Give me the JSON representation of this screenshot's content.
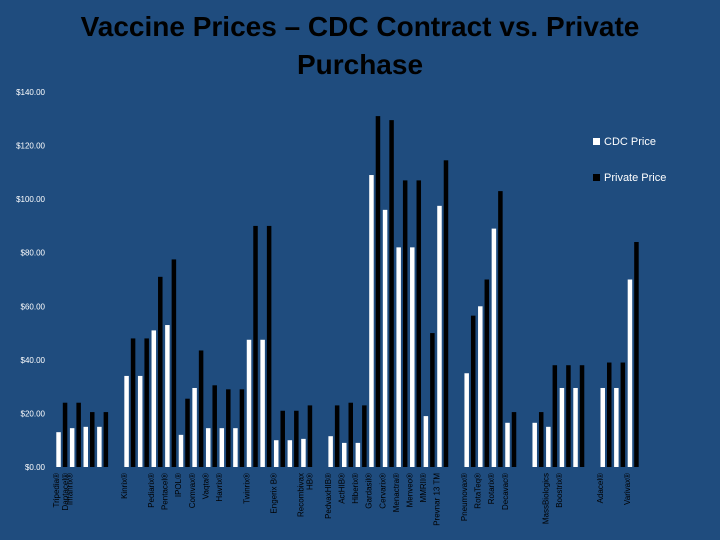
{
  "chart_data": {
    "type": "bar",
    "title": "Vaccine Prices – CDC Contract vs. Private Purchase",
    "xlabel": "",
    "ylabel": "",
    "ylim": [
      0,
      140
    ],
    "yticks": [
      "$0.00",
      "$20.00",
      "$40.00",
      "$60.00",
      "$80.00",
      "$100.00",
      "$120.00",
      "$140.00"
    ],
    "ytick_values": [
      0,
      20,
      40,
      60,
      80,
      100,
      120,
      140
    ],
    "legend": {
      "placement": "top-right",
      "entries": [
        "CDC Price",
        "Private Price"
      ]
    },
    "series": [
      {
        "name": "CDC Price",
        "color": "#ffffff",
        "values": [
          13,
          14.5,
          15,
          15,
          null,
          34,
          34,
          51,
          53,
          12,
          29.5,
          14.5,
          14.5,
          14.5,
          47.5,
          47.5,
          10,
          10,
          10.5,
          null,
          11.5,
          9,
          9,
          109,
          96,
          82,
          82,
          19,
          97.5,
          null,
          35,
          60,
          89,
          16.5,
          null,
          16.5,
          15,
          29.5,
          29.5,
          null,
          29.5,
          29.5,
          70
        ]
      },
      {
        "name": "Private Price",
        "color": "#000000",
        "values": [
          24,
          24,
          20.5,
          20.5,
          null,
          48,
          48,
          71,
          77.5,
          25.5,
          43.5,
          30.5,
          29,
          29,
          90,
          90,
          21,
          21,
          23,
          null,
          23,
          24,
          23,
          131,
          129.5,
          107,
          107,
          50,
          114.5,
          null,
          56.5,
          70,
          103,
          20.5,
          null,
          20.5,
          38,
          38,
          38,
          null,
          39,
          39,
          84
        ]
      }
    ],
    "categories": [
      {
        "line1": "Tripedia®",
        "line2": "Daptacel®"
      },
      {
        "line1": "Infanrix®",
        "line2": ""
      },
      {
        "line1": "",
        "line2": ""
      },
      {
        "line1": "",
        "line2": ""
      },
      {
        "line1": "",
        "line2": ""
      },
      {
        "line1": "Kinrix®",
        "line2": ""
      },
      {
        "line1": "",
        "line2": ""
      },
      {
        "line1": "Pediarix®",
        "line2": ""
      },
      {
        "line1": "Pentacel®",
        "line2": ""
      },
      {
        "line1": "IPOL®",
        "line2": ""
      },
      {
        "line1": "Comvax®",
        "line2": ""
      },
      {
        "line1": "Vaqta®",
        "line2": ""
      },
      {
        "line1": "Havrix®",
        "line2": ""
      },
      {
        "line1": "",
        "line2": ""
      },
      {
        "line1": "Twinrix®",
        "line2": ""
      },
      {
        "line1": "",
        "line2": ""
      },
      {
        "line1": "Engerix B®",
        "line2": ""
      },
      {
        "line1": "",
        "line2": ""
      },
      {
        "line1": "Recombivax",
        "line2": "HB®"
      },
      {
        "line1": "",
        "line2": ""
      },
      {
        "line1": "PedvaxHIB®",
        "line2": ""
      },
      {
        "line1": "ActHIB®",
        "line2": ""
      },
      {
        "line1": "Hiberix®",
        "line2": ""
      },
      {
        "line1": "Gardasil®",
        "line2": ""
      },
      {
        "line1": "Cervarix®",
        "line2": ""
      },
      {
        "line1": "Menactra®",
        "line2": ""
      },
      {
        "line1": "Menveo®",
        "line2": ""
      },
      {
        "line1": "MMRII®",
        "line2": ""
      },
      {
        "line1": "Prevnar 13 TM",
        "line2": ""
      },
      {
        "line1": "",
        "line2": ""
      },
      {
        "line1": "Pneumovax®",
        "line2": ""
      },
      {
        "line1": "RotaTeq®",
        "line2": ""
      },
      {
        "line1": "Rotarix®",
        "line2": ""
      },
      {
        "line1": "Decavac®",
        "line2": ""
      },
      {
        "line1": "",
        "line2": ""
      },
      {
        "line1": "",
        "line2": ""
      },
      {
        "line1": "MassBiologics",
        "line2": ""
      },
      {
        "line1": "Boostrix®",
        "line2": ""
      },
      {
        "line1": "",
        "line2": ""
      },
      {
        "line1": "",
        "line2": ""
      },
      {
        "line1": "Adacel®",
        "line2": ""
      },
      {
        "line1": "",
        "line2": ""
      },
      {
        "line1": "Varivax®",
        "line2": ""
      }
    ],
    "grid": false
  }
}
